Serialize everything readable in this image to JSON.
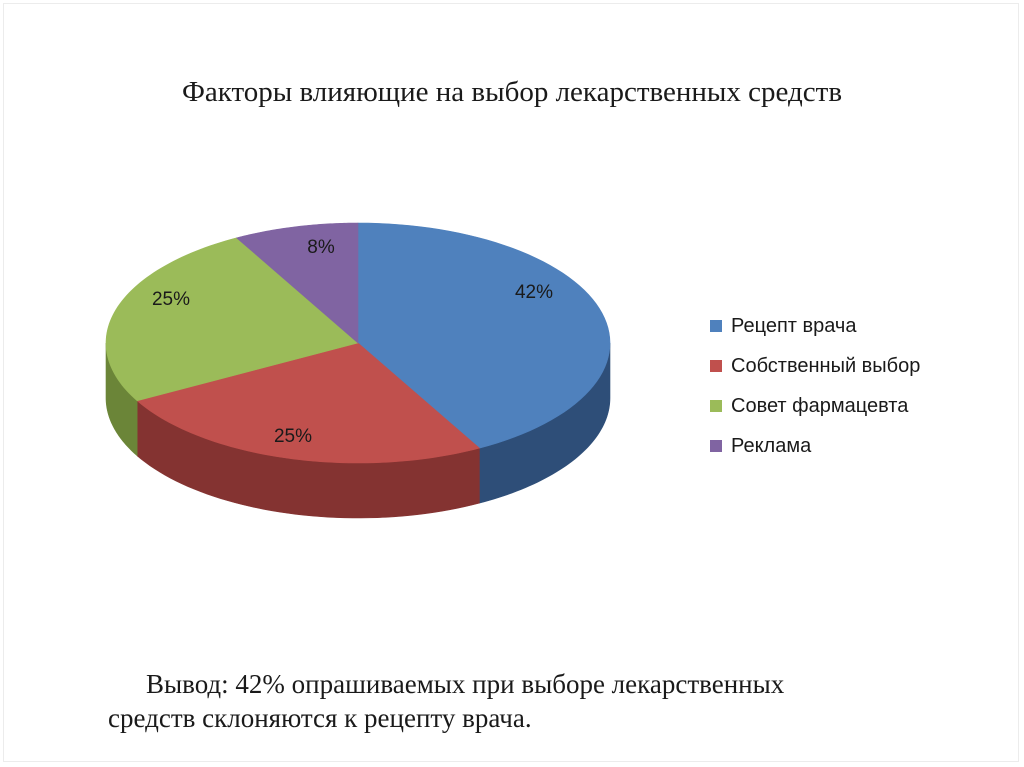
{
  "chart_data": {
    "type": "pie",
    "title": "Факторы влияющие на выбор лекарственных средств",
    "categories": [
      "Рецепт врача",
      "Собственный выбор",
      "Совет фармацевта",
      "Реклама"
    ],
    "values": [
      42,
      25,
      25,
      8
    ],
    "data_labels": [
      "42%",
      "25%",
      "25%",
      "8%"
    ],
    "unit": "%",
    "colors": [
      "#4F81BD",
      "#C0504D",
      "#9BBB59",
      "#8064A2"
    ],
    "side_colors": [
      "#2E4E78",
      "#843331",
      "#6B8538",
      "#574472"
    ],
    "style": "3d",
    "legend_position": "right"
  },
  "conclusion": {
    "text": "Вывод: 42% опрашиваемых при выборе лекарственных средств склоняются к рецепту врача."
  }
}
